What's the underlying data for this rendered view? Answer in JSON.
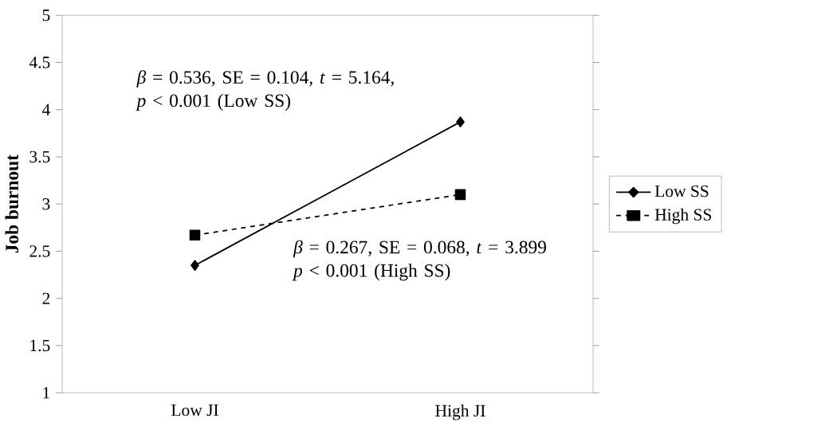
{
  "chart_data": {
    "type": "line",
    "ylabel": "Job burnout",
    "categories": [
      "Low JI",
      "High JI"
    ],
    "series": [
      {
        "name": "Low SS",
        "color": "#000000",
        "values": [
          2.35,
          3.87
        ],
        "marker": "diamond",
        "line_style": "solid"
      },
      {
        "name": "High SS",
        "color": "#000000",
        "values": [
          2.67,
          3.1
        ],
        "marker": "square",
        "line_style": "dashed"
      }
    ],
    "ylim": [
      1,
      5
    ],
    "yticks": [
      1,
      1.5,
      2,
      2.5,
      3,
      3.5,
      4,
      4.5,
      5
    ],
    "legend": "right",
    "annotations": [
      "*β* = 0.536, SE = 0.104, *t* = 5.164, *p* < 0.001 (Low SS)",
      "*β* = 0.267, SE = 0.068, *t* = 3.899 *p* < 0.001 (High SS)"
    ]
  }
}
